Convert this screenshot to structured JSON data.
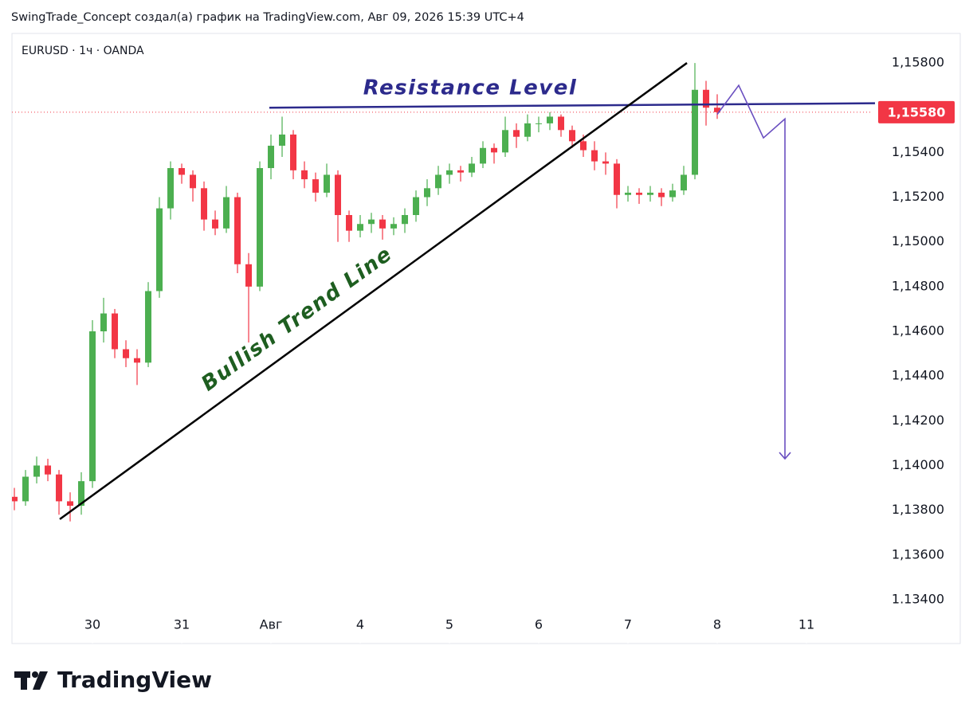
{
  "header": {
    "credit": "SwingTrade_Concept создал(а) график на TradingView.com, Авг 09, 2026 15:39 UTC+4"
  },
  "footer": {
    "brand": "TradingView"
  },
  "chart_data": {
    "type": "candlestick",
    "title": "EURUSD · 1ч · OANDA",
    "up_color": "#4caf50",
    "down_color": "#f23645",
    "xlim": [
      -0.902,
      8.741
    ],
    "xticks": [
      {
        "value": 0,
        "label": "30"
      },
      {
        "value": 1,
        "label": "31"
      },
      {
        "value": 2,
        "label": "Авг"
      },
      {
        "value": 3,
        "label": "4"
      },
      {
        "value": 4,
        "label": "5"
      },
      {
        "value": 5,
        "label": "6"
      },
      {
        "value": 6,
        "label": "7"
      },
      {
        "value": 7,
        "label": "8"
      },
      {
        "value": 8,
        "label": "11"
      }
    ],
    "ylim": [
      1.13204,
      1.15932
    ],
    "yticks": [
      {
        "value": 1.158,
        "label": "1,15800"
      },
      {
        "value": 1.156,
        "label": "1,15600"
      },
      {
        "value": 1.154,
        "label": "1,15400"
      },
      {
        "value": 1.152,
        "label": "1,15200"
      },
      {
        "value": 1.15,
        "label": "1,15000"
      },
      {
        "value": 1.148,
        "label": "1,14800"
      },
      {
        "value": 1.146,
        "label": "1,14600"
      },
      {
        "value": 1.144,
        "label": "1,14400"
      },
      {
        "value": 1.142,
        "label": "1,14200"
      },
      {
        "value": 1.14,
        "label": "1,14000"
      },
      {
        "value": 1.138,
        "label": "1,13800"
      },
      {
        "value": 1.136,
        "label": "1,13600"
      },
      {
        "value": 1.134,
        "label": "1.13400"
      }
    ],
    "hidden_ytick": 1,
    "last_price": {
      "value": 1.1558,
      "label": "1,15580",
      "color": "#f23645"
    },
    "x": [
      -0.875,
      -0.75,
      -0.625,
      -0.5,
      -0.375,
      -0.25,
      -0.125,
      0,
      0.125,
      0.25,
      0.375,
      0.5,
      0.625,
      0.75,
      0.875,
      1,
      1.125,
      1.25,
      1.375,
      1.5,
      1.625,
      1.75,
      1.875,
      2,
      2.125,
      2.25,
      2.375,
      2.5,
      2.625,
      2.75,
      2.875,
      3,
      3.125,
      3.25,
      3.375,
      3.5,
      3.625,
      3.75,
      3.875,
      4,
      4.125,
      4.25,
      4.375,
      4.5,
      4.625,
      4.75,
      4.875,
      5,
      5.125,
      5.25,
      5.375,
      5.5,
      5.625,
      5.75,
      5.875,
      6,
      6.125,
      6.25,
      6.375,
      6.5,
      6.625,
      6.75,
      6.875,
      7
    ],
    "ohlc": [
      [
        1.1386,
        1.139,
        1.138,
        1.1384
      ],
      [
        1.1384,
        1.1398,
        1.1382,
        1.1395
      ],
      [
        1.1395,
        1.1404,
        1.1392,
        1.14
      ],
      [
        1.14,
        1.1403,
        1.1393,
        1.1396
      ],
      [
        1.1396,
        1.1398,
        1.1378,
        1.1384
      ],
      [
        1.1384,
        1.1388,
        1.1375,
        1.1382
      ],
      [
        1.1382,
        1.1397,
        1.1378,
        1.1393
      ],
      [
        1.1393,
        1.1465,
        1.139,
        1.146
      ],
      [
        1.146,
        1.1475,
        1.1455,
        1.1468
      ],
      [
        1.1468,
        1.147,
        1.1448,
        1.1452
      ],
      [
        1.1452,
        1.1456,
        1.1444,
        1.1448
      ],
      [
        1.1448,
        1.1452,
        1.1436,
        1.1446
      ],
      [
        1.1446,
        1.1482,
        1.1444,
        1.1478
      ],
      [
        1.1478,
        1.152,
        1.1475,
        1.1515
      ],
      [
        1.1515,
        1.1536,
        1.151,
        1.1533
      ],
      [
        1.1533,
        1.1535,
        1.1526,
        1.153
      ],
      [
        1.153,
        1.1532,
        1.1518,
        1.1524
      ],
      [
        1.1524,
        1.1527,
        1.1505,
        1.151
      ],
      [
        1.151,
        1.1514,
        1.1503,
        1.1506
      ],
      [
        1.1506,
        1.1525,
        1.1504,
        1.152
      ],
      [
        1.152,
        1.1522,
        1.1486,
        1.149
      ],
      [
        1.149,
        1.1495,
        1.1455,
        1.148
      ],
      [
        1.148,
        1.1536,
        1.1478,
        1.1533
      ],
      [
        1.1533,
        1.1548,
        1.1528,
        1.1543
      ],
      [
        1.1543,
        1.1556,
        1.1538,
        1.1548
      ],
      [
        1.1548,
        1.155,
        1.1528,
        1.1532
      ],
      [
        1.1532,
        1.1536,
        1.1524,
        1.1528
      ],
      [
        1.1528,
        1.1531,
        1.1518,
        1.1522
      ],
      [
        1.1522,
        1.1535,
        1.152,
        1.153
      ],
      [
        1.153,
        1.1532,
        1.15,
        1.1512
      ],
      [
        1.1512,
        1.1514,
        1.15,
        1.1505
      ],
      [
        1.1505,
        1.1512,
        1.1502,
        1.1508
      ],
      [
        1.1508,
        1.1513,
        1.1504,
        1.151
      ],
      [
        1.151,
        1.1512,
        1.1501,
        1.1506
      ],
      [
        1.1506,
        1.1511,
        1.1503,
        1.1508
      ],
      [
        1.1508,
        1.1515,
        1.1504,
        1.1512
      ],
      [
        1.1512,
        1.1523,
        1.1509,
        1.152
      ],
      [
        1.152,
        1.1528,
        1.1516,
        1.1524
      ],
      [
        1.1524,
        1.1534,
        1.1521,
        1.153
      ],
      [
        1.153,
        1.1535,
        1.1526,
        1.1532
      ],
      [
        1.1532,
        1.1534,
        1.1527,
        1.1531
      ],
      [
        1.1531,
        1.1538,
        1.1529,
        1.1535
      ],
      [
        1.1535,
        1.1545,
        1.1533,
        1.1542
      ],
      [
        1.1542,
        1.1544,
        1.1535,
        1.154
      ],
      [
        1.154,
        1.1556,
        1.1538,
        1.155
      ],
      [
        1.155,
        1.1553,
        1.1542,
        1.1547
      ],
      [
        1.1547,
        1.1557,
        1.1545,
        1.1553
      ],
      [
        1.1553,
        1.1556,
        1.1549,
        1.1553
      ],
      [
        1.1553,
        1.1558,
        1.155,
        1.1556
      ],
      [
        1.1556,
        1.1557,
        1.1547,
        1.155
      ],
      [
        1.155,
        1.1552,
        1.1542,
        1.1545
      ],
      [
        1.1545,
        1.1548,
        1.1538,
        1.1541
      ],
      [
        1.1541,
        1.1545,
        1.1532,
        1.1536
      ],
      [
        1.1536,
        1.154,
        1.153,
        1.1535
      ],
      [
        1.1535,
        1.1537,
        1.1515,
        1.1521
      ],
      [
        1.1521,
        1.1525,
        1.1518,
        1.1522
      ],
      [
        1.1522,
        1.1524,
        1.1517,
        1.1521
      ],
      [
        1.1521,
        1.1525,
        1.1518,
        1.1522
      ],
      [
        1.1522,
        1.1524,
        1.1516,
        1.152
      ],
      [
        1.152,
        1.1526,
        1.1518,
        1.1523
      ],
      [
        1.1523,
        1.1534,
        1.1521,
        1.153
      ],
      [
        1.153,
        1.158,
        1.1528,
        1.1568
      ],
      [
        1.1568,
        1.1572,
        1.1552,
        1.156
      ],
      [
        1.156,
        1.1566,
        1.1555,
        1.1558
      ]
    ],
    "annotations": [
      {
        "label": "Resistance Level",
        "color": "#2c2a8c",
        "label_color": "#2c2a8c",
        "x": [
          1.982,
          8.768
        ],
        "y": [
          1.156,
          1.1562
        ]
      },
      {
        "label": "Bullish Trend Line",
        "color": "#000000",
        "label_color": "#1e5e20",
        "x": [
          -0.366,
          6.661
        ],
        "y": [
          1.1376,
          1.158
        ]
      }
    ],
    "projection": {
      "color": "#6a4fc0",
      "x": [
        7.0,
        7.241,
        7.518,
        7.759,
        7.759
      ],
      "y": [
        1.1557,
        1.157,
        1.15465,
        1.1555,
        1.1403
      ]
    }
  }
}
